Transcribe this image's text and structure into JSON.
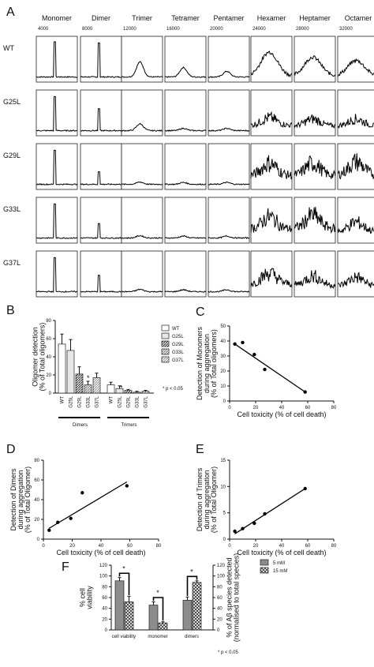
{
  "panel_labels": [
    "A",
    "B",
    "C",
    "D",
    "E",
    "F"
  ],
  "chart_data": [
    {
      "type": "line",
      "panel": "A",
      "columns": [
        "Monomer",
        "Dimer",
        "Trimer",
        "Tetramer",
        "Pentamer",
        "Hexamer",
        "Heptamer",
        "Octamer"
      ],
      "column_ticks": [
        "4000",
        "8000",
        "12000",
        "16000",
        "20000",
        "24000",
        "28000",
        "32000"
      ],
      "rows": [
        "WT",
        "G25L",
        "G29L",
        "G33L",
        "G37L"
      ],
      "peak_heights": [
        [
          0.95,
          0.92,
          0.4,
          0.25,
          0.15,
          0.7,
          0.55,
          0.45
        ],
        [
          0.92,
          0.6,
          0.18,
          0.06,
          0.06,
          0.5,
          0.45,
          0.45
        ],
        [
          0.92,
          0.35,
          0.06,
          0.05,
          0.05,
          0.8,
          0.8,
          0.85
        ],
        [
          0.92,
          0.4,
          0.06,
          0.05,
          0.05,
          0.8,
          0.85,
          0.6
        ],
        [
          0.92,
          0.45,
          0.06,
          0.05,
          0.05,
          0.7,
          0.6,
          0.55
        ]
      ]
    },
    {
      "type": "bar",
      "panel": "B",
      "ylabel": "Oligomer detection\n(% of Total oligomers)",
      "ylim": [
        0,
        80
      ],
      "yticks": [
        "0",
        "20",
        "40",
        "60",
        "80"
      ],
      "group_labels": [
        "Dimers",
        "Trimers"
      ],
      "categories": [
        "WT",
        "G25L",
        "G29L",
        "G33L",
        "G37L"
      ],
      "series": [
        {
          "name": "Dimers",
          "values": [
            54,
            47,
            21,
            9,
            17
          ],
          "errors": [
            11,
            12,
            8,
            4,
            5
          ]
        },
        {
          "name": "Trimers",
          "values": [
            9,
            5,
            3,
            1,
            2
          ],
          "errors": [
            3,
            3,
            1,
            1,
            1
          ]
        }
      ],
      "legend": [
        "WT",
        "G25L",
        "G29L",
        "G33L",
        "G37L"
      ],
      "significance": "*",
      "note": "* p < 0.05"
    },
    {
      "type": "scatter",
      "panel": "C",
      "xlabel": "Cell toxicity (% of cell death)",
      "ylabel": "Detection of Monomers\nduring aggregation\n(% of Total oligomers)",
      "xlim": [
        0,
        80
      ],
      "ylim": [
        0,
        50
      ],
      "xticks": [
        "0",
        "20",
        "40",
        "60",
        "80"
      ],
      "yticks": [
        "0",
        "10",
        "20",
        "30",
        "40",
        "50"
      ],
      "x": [
        4,
        10,
        19,
        27,
        58
      ],
      "y": [
        38,
        39,
        31,
        21,
        6
      ],
      "fit": [
        [
          4,
          38
        ],
        [
          58,
          6
        ]
      ]
    },
    {
      "type": "scatter",
      "panel": "D",
      "xlabel": "Cell toxicity (% of cell death)",
      "ylabel": "Detection of Dimers\nduring aggregation\n(% of Total Oligomer)",
      "xlim": [
        0,
        80
      ],
      "ylim": [
        0,
        80
      ],
      "xticks": [
        "0",
        "20",
        "40",
        "60",
        "80"
      ],
      "yticks": [
        "0",
        "20",
        "40",
        "60",
        "80"
      ],
      "x": [
        4,
        10,
        19,
        27,
        58
      ],
      "y": [
        9,
        17,
        21,
        47,
        54
      ],
      "fit": [
        [
          4,
          11
        ],
        [
          58,
          58
        ]
      ]
    },
    {
      "type": "scatter",
      "panel": "E",
      "xlabel": "Cell toxicity (% of cell death)",
      "ylabel": "Detection of Trimers\nduring aggregation\n(% of Total Oligomer)",
      "xlim": [
        0,
        80
      ],
      "ylim": [
        0,
        15
      ],
      "xticks": [
        "0",
        "20",
        "40",
        "60",
        "80"
      ],
      "yticks": [
        "0",
        "5",
        "10",
        "15"
      ],
      "x": [
        4,
        10,
        19,
        27,
        58
      ],
      "y": [
        1.5,
        2,
        3,
        4.8,
        9.6
      ],
      "fit": [
        [
          4,
          1
        ],
        [
          58,
          9.6
        ]
      ]
    },
    {
      "type": "bar",
      "panel": "F",
      "ylabel": "% cell\nviability",
      "y2label": "% of Aβ species detected\n(normalised to total species)",
      "ylim": [
        0,
        120
      ],
      "yticks": [
        "0",
        "20",
        "40",
        "60",
        "80",
        "100",
        "120"
      ],
      "y2ticks": [
        "0",
        "20",
        "40",
        "60",
        "80",
        "100",
        "120"
      ],
      "categories": [
        "cell viability",
        "monomer",
        "dimers"
      ],
      "series": [
        {
          "name": "5 mM",
          "values": [
            91,
            46,
            55
          ],
          "errors": [
            6,
            6,
            6
          ]
        },
        {
          "name": "15 mM",
          "values": [
            52,
            13,
            88
          ],
          "errors": [
            10,
            2,
            3
          ]
        }
      ],
      "significance": "*",
      "note": "* p < 0.05"
    }
  ]
}
